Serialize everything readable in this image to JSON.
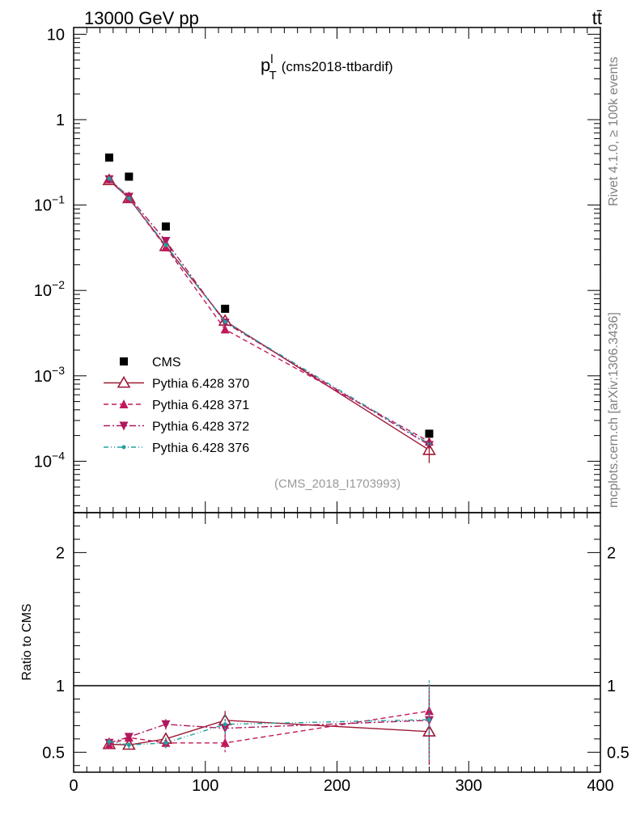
{
  "header": {
    "energy": "13000 GeV pp",
    "process": "tt̄",
    "rivet": "Rivet 4.1.0, ≥ 100k events",
    "mcplots": "mcplots.cern.ch [arXiv:1306.3436]"
  },
  "chart_data": {
    "type": "scatter",
    "title": "p",
    "title_sup": "l",
    "title_sub": "T",
    "title_suffix": "(cms2018-ttbardif)",
    "analysis_id": "(CMS_2018_I1703993)",
    "xlim": [
      0,
      400
    ],
    "xticks": [
      0,
      100,
      200,
      300,
      400
    ],
    "x_tick_labels": [
      "0",
      "100",
      "200",
      "300",
      "400"
    ],
    "main": {
      "yscale": "log",
      "ylim": [
        2.5e-05,
        12
      ],
      "y_tick_labels": [
        {
          "value": 10,
          "base": "10",
          "exp": ""
        },
        {
          "value": 1,
          "base": "1",
          "exp": ""
        },
        {
          "value": 0.1,
          "base": "10",
          "exp": "−1"
        },
        {
          "value": 0.01,
          "base": "10",
          "exp": "−2"
        },
        {
          "value": 0.001,
          "base": "10",
          "exp": "−3"
        },
        {
          "value": 0.0001,
          "base": "10",
          "exp": "−4"
        }
      ]
    },
    "ratio": {
      "ylabel": "Ratio to CMS",
      "ylim": [
        0.35,
        2.3
      ],
      "yticks": [
        0.5,
        1,
        2
      ],
      "y_tick_labels": [
        "0.5",
        "1",
        "2"
      ]
    },
    "x": [
      27,
      42,
      70,
      115,
      270
    ],
    "legend_position": "lower-left",
    "series": [
      {
        "name": "CMS",
        "color": "#000000",
        "marker": "square",
        "line": "none",
        "values": [
          0.36,
          0.215,
          0.056,
          0.0061,
          0.00021
        ]
      },
      {
        "name": "Pythia 6.428 370",
        "color": "#9c1b36",
        "marker": "triangle-up-open",
        "line": "solid",
        "values": [
          0.195,
          0.12,
          0.033,
          0.0044,
          0.000135
        ],
        "ratio": [
          0.56,
          0.555,
          0.6,
          0.74,
          0.655
        ],
        "ratio_err": [
          0.02,
          0.03,
          0.04,
          0.07,
          0.25
        ]
      },
      {
        "name": "Pythia 6.428 371",
        "color": "#c2185b",
        "marker": "triangle-up-filled",
        "line": "dashed",
        "values": [
          0.2,
          0.12,
          0.032,
          0.0035,
          0.00017
        ],
        "ratio": [
          0.555,
          0.61,
          0.57,
          0.57,
          0.81
        ],
        "ratio_err": [
          0.03,
          0.03,
          0.04,
          0.07,
          0.21
        ]
      },
      {
        "name": "Pythia 6.428 372",
        "color": "#b0185e",
        "marker": "triangle-down-filled",
        "line": "dashdot",
        "values": [
          0.2,
          0.125,
          0.038,
          0.0042,
          0.000155
        ],
        "ratio": [
          0.57,
          0.615,
          0.71,
          0.68,
          0.74
        ],
        "ratio_err": [
          0.03,
          0.03,
          0.04,
          0.07,
          0.25
        ]
      },
      {
        "name": "Pythia 6.428 376",
        "color": "#20a0a0",
        "marker": "dot",
        "line": "dashdotdot",
        "values": [
          0.205,
          0.12,
          0.034,
          0.0043,
          0.00016
        ],
        "ratio": [
          0.58,
          0.555,
          0.57,
          0.71,
          0.745
        ],
        "ratio_err": [
          0.03,
          0.03,
          0.04,
          0.07,
          0.3
        ]
      }
    ]
  }
}
